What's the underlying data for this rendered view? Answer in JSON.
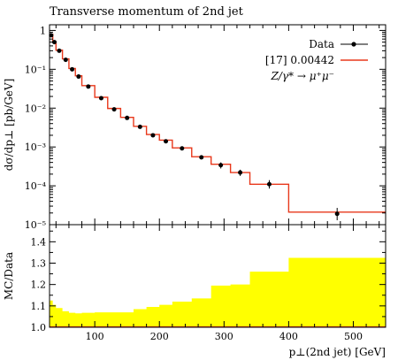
{
  "chart_data": [
    {
      "panel": "main",
      "type": "line",
      "title": "Transverse momentum of 2nd jet",
      "ylabel": "dσ/dp⊥ [pb/GeV]",
      "yscale": "log",
      "xlim": [
        30,
        550
      ],
      "ylim": [
        1e-05,
        1.4
      ],
      "yticks": [
        {
          "value": 1,
          "label": "1"
        },
        {
          "value": 0.1,
          "label": "10⁻¹"
        },
        {
          "value": 0.01,
          "label": "10⁻²"
        },
        {
          "value": 0.001,
          "label": "10⁻³"
        },
        {
          "value": 0.0001,
          "label": "10⁻⁴"
        },
        {
          "value": 1e-05,
          "label": "10⁻⁵"
        }
      ],
      "legend": {
        "placement": "top-right",
        "entries": [
          "Data",
          "[17] 0.00442"
        ],
        "process": "Z/γ* → μ⁺μ⁻"
      },
      "series": [
        {
          "name": "Data",
          "marker": "dot",
          "color": "#000000",
          "x": [
            32.5,
            37.5,
            45,
            55,
            65,
            75,
            90,
            110,
            130,
            150,
            170,
            190,
            210,
            235,
            265,
            295,
            325,
            370,
            475
          ],
          "y": [
            0.75,
            0.5,
            0.3,
            0.175,
            0.1,
            0.065,
            0.036,
            0.018,
            0.0093,
            0.0056,
            0.0033,
            0.002,
            0.0014,
            0.00092,
            0.00054,
            0.00034,
            0.00022,
            0.00011,
            1.9e-05
          ],
          "yerr_low": [
            0.72,
            0.48,
            0.29,
            0.17,
            0.097,
            0.063,
            0.035,
            0.0175,
            0.009,
            0.0054,
            0.0031,
            0.0019,
            0.00132,
            0.00085,
            0.00048,
            0.00028,
            0.00018,
            8.5e-05,
            1.3e-05
          ],
          "yerr_high": [
            0.78,
            0.52,
            0.31,
            0.18,
            0.103,
            0.067,
            0.037,
            0.0185,
            0.0096,
            0.0058,
            0.0035,
            0.0021,
            0.00148,
            0.00099,
            0.0006,
            0.0004,
            0.00026,
            0.00014,
            2.7e-05
          ]
        },
        {
          "name": "[17] 0.00442",
          "style": "histogram",
          "color": "#e8381b",
          "bin_edges": [
            30,
            35,
            40,
            50,
            60,
            70,
            80,
            100,
            120,
            140,
            160,
            180,
            200,
            220,
            250,
            280,
            310,
            340,
            400,
            550
          ],
          "values": [
            0.8,
            0.52,
            0.31,
            0.185,
            0.105,
            0.068,
            0.038,
            0.019,
            0.0098,
            0.0058,
            0.0034,
            0.0021,
            0.0015,
            0.00095,
            0.00056,
            0.00036,
            0.00022,
            0.00011,
            2.1e-05
          ]
        }
      ]
    },
    {
      "panel": "ratio",
      "type": "area",
      "ylabel": "MC/Data",
      "xlabel": "p⊥(2nd jet) [GeV]",
      "xlim": [
        30,
        550
      ],
      "ylim": [
        1.0,
        1.48
      ],
      "xticks": [
        100,
        200,
        300,
        400,
        500
      ],
      "yticks": [
        1.0,
        1.1,
        1.2,
        1.3,
        1.4
      ],
      "band_color": "#ffff00",
      "line_color": "#e8381b",
      "bin_edges": [
        30,
        35,
        40,
        50,
        60,
        70,
        80,
        100,
        120,
        140,
        160,
        180,
        200,
        220,
        250,
        280,
        310,
        340,
        400,
        550
      ],
      "band_upper": [
        1.125,
        1.105,
        1.09,
        1.075,
        1.068,
        1.065,
        1.068,
        1.07,
        1.07,
        1.07,
        1.085,
        1.095,
        1.105,
        1.12,
        1.135,
        1.195,
        1.2,
        1.26,
        1.325
      ],
      "ratio_line": [
        1.0,
        1.0,
        1.0,
        1.0,
        1.0,
        1.0,
        1.0,
        1.0,
        1.0,
        1.0,
        1.0,
        1.0,
        1.0,
        1.0,
        1.0,
        1.0,
        1.0,
        1.0,
        1.0
      ]
    }
  ]
}
